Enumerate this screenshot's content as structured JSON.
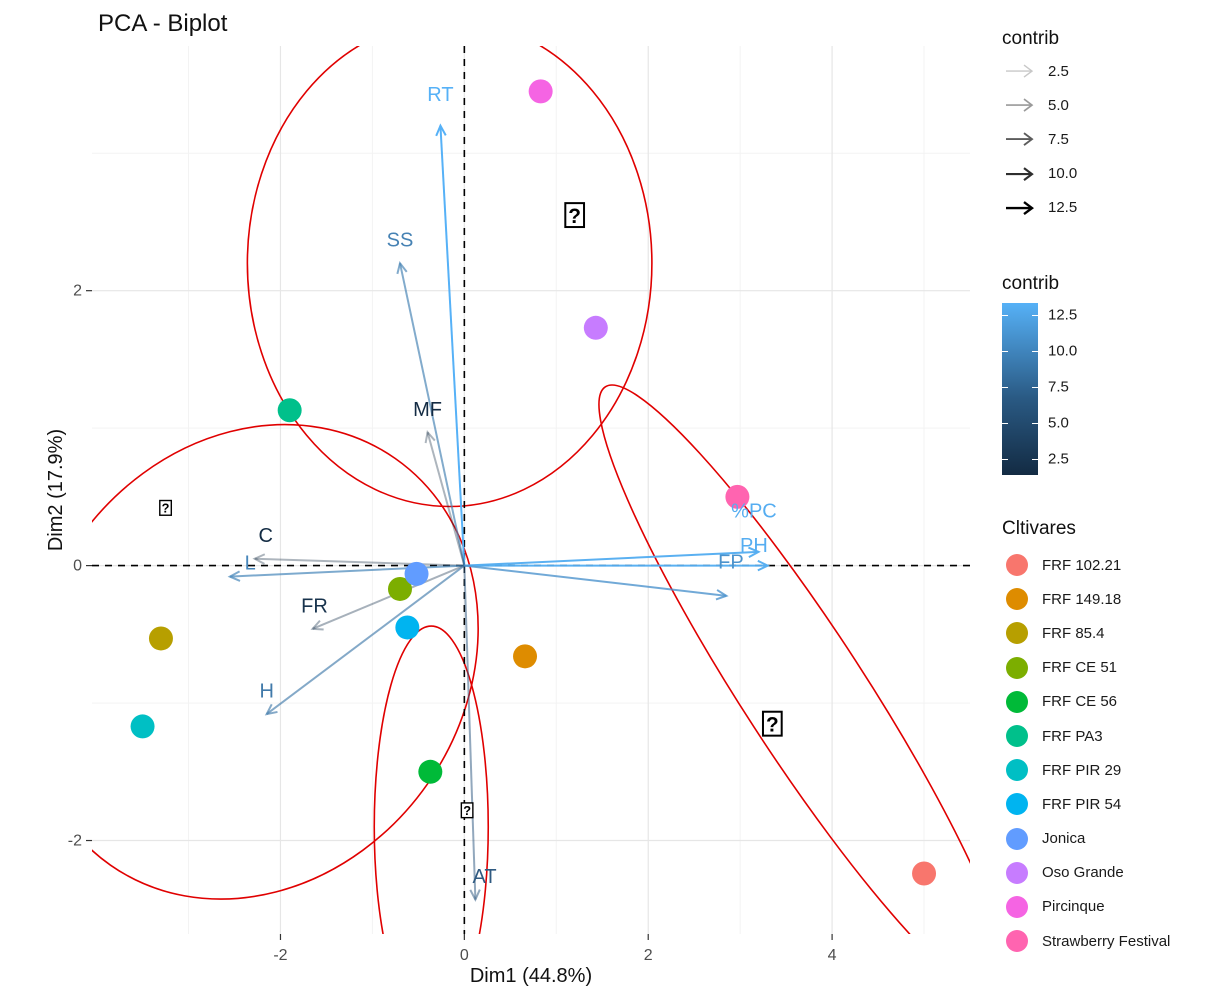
{
  "chart_data": {
    "type": "scatter",
    "title": "PCA - Biplot",
    "xlabel": "Dim1 (44.8%)",
    "ylabel": "Dim2 (17.9%)",
    "xlim": [
      -4.05,
      5.5
    ],
    "ylim": [
      -2.68,
      3.78
    ],
    "xticks": [
      -2,
      0,
      2,
      4
    ],
    "yticks": [
      -2,
      0,
      2
    ],
    "grid": true,
    "individuals": [
      {
        "name": "FRF 102.21",
        "x": 5.0,
        "y": -2.24,
        "color": "#F8766D"
      },
      {
        "name": "FRF 149.18",
        "x": 0.66,
        "y": -0.66,
        "color": "#DE8C00"
      },
      {
        "name": "FRF 85.4",
        "x": -3.3,
        "y": -0.53,
        "color": "#B79F00"
      },
      {
        "name": "FRF CE 51",
        "x": -0.7,
        "y": -0.17,
        "color": "#7CAE00"
      },
      {
        "name": "FRF CE 56",
        "x": -0.37,
        "y": -1.5,
        "color": "#00BA38"
      },
      {
        "name": "FRF PA3",
        "x": -1.9,
        "y": 1.13,
        "color": "#00C08B"
      },
      {
        "name": "FRF PIR 29",
        "x": -3.5,
        "y": -1.17,
        "color": "#00BFC4"
      },
      {
        "name": "FRF PIR 54",
        "x": -0.62,
        "y": -0.45,
        "color": "#00B4F0"
      },
      {
        "name": "Jonica",
        "x": -0.52,
        "y": -0.06,
        "color": "#619CFF"
      },
      {
        "name": "Oso Grande",
        "x": 1.43,
        "y": 1.73,
        "color": "#C77CFF"
      },
      {
        "name": "Pircinque",
        "x": 0.83,
        "y": 3.45,
        "color": "#F564E3"
      },
      {
        "name": "Strawberry Festival",
        "x": 2.97,
        "y": 0.5,
        "color": "#FF64B0"
      }
    ],
    "variables": [
      {
        "name": "RT",
        "x": -0.26,
        "y": 3.2,
        "contrib": 12.5
      },
      {
        "name": "SS",
        "x": -0.7,
        "y": 2.2,
        "contrib": 7.0
      },
      {
        "name": "MF",
        "x": -0.4,
        "y": 0.97,
        "contrib": 1.5
      },
      {
        "name": "C",
        "x": -2.28,
        "y": 0.05,
        "contrib": 1.5
      },
      {
        "name": "L",
        "x": -2.55,
        "y": -0.08,
        "contrib": 7.5
      },
      {
        "name": "FR",
        "x": -1.65,
        "y": -0.46,
        "contrib": 2.0
      },
      {
        "name": "H",
        "x": -2.15,
        "y": -1.08,
        "contrib": 6.5
      },
      {
        "name": "%PC",
        "x": 3.2,
        "y": 0.1,
        "contrib": 12.0
      },
      {
        "name": "PH",
        "x": 3.3,
        "y": 0.0,
        "contrib": 12.0
      },
      {
        "name": "FP",
        "x": 2.85,
        "y": -0.22,
        "contrib": 9.0
      },
      {
        "name": "AT",
        "x": 0.12,
        "y": -2.43,
        "contrib": 4.5
      }
    ],
    "variable_label_offsets": {
      "RT": [
        0,
        0.18
      ],
      "SS": [
        0,
        0.12
      ],
      "MF": [
        0,
        0.12
      ],
      "C": [
        0.12,
        0.12
      ],
      "L": [
        0.22,
        0.05
      ],
      "FR": [
        0.02,
        0.12
      ],
      "H": [
        0,
        0.12
      ],
      "%PC": [
        -0.05,
        0.25
      ],
      "PH": [
        -0.15,
        0.1
      ],
      "FP": [
        0.05,
        0.2
      ],
      "AT": [
        0.1,
        0.12
      ]
    },
    "ellipses": [
      {
        "cx": -0.16,
        "cy": 2.2,
        "rx": 2.2,
        "ry": 1.77,
        "angle": 0
      },
      {
        "cx": -2.3,
        "cy": -0.7,
        "rx": 2.7,
        "ry": 1.55,
        "angle": 55
      },
      {
        "cx": -0.36,
        "cy": -1.9,
        "rx": 0.62,
        "ry": 1.46,
        "angle": 0
      },
      {
        "cx": 3.7,
        "cy": -0.93,
        "rx": 0.66,
        "ry": 2.66,
        "angle": 33
      }
    ],
    "ellipse_color": "#E00000",
    "group_centers": [
      {
        "x": 1.2,
        "y": 2.55,
        "glyph": "?",
        "size": 26
      },
      {
        "x": -3.25,
        "y": 0.42,
        "glyph": "?",
        "size": 16
      },
      {
        "x": 0.03,
        "y": -1.78,
        "glyph": "?",
        "size": 16
      },
      {
        "x": 3.35,
        "y": -1.15,
        "glyph": "?",
        "size": 26
      }
    ]
  },
  "legend_contrib_arrows": {
    "title": "contrib",
    "items": [
      {
        "label": "2.5",
        "color": "#c8c8c8"
      },
      {
        "label": "5.0",
        "color": "#9a9a9a"
      },
      {
        "label": "7.5",
        "color": "#5c5c5c"
      },
      {
        "label": "10.0",
        "color": "#2e2e2e"
      },
      {
        "label": "12.5",
        "color": "#000000"
      }
    ]
  },
  "legend_contrib_gradient": {
    "title": "contrib",
    "ticks": [
      "12.5",
      "10.0",
      "7.5",
      "5.0",
      "2.5"
    ],
    "low_color": "#132B43",
    "high_color": "#56B1F7"
  },
  "legend_cultivars": {
    "title": "Cltivares",
    "items": [
      {
        "label": "FRF 102.21",
        "color": "#F8766D"
      },
      {
        "label": "FRF 149.18",
        "color": "#DE8C00"
      },
      {
        "label": "FRF 85.4",
        "color": "#B79F00"
      },
      {
        "label": "FRF CE 51",
        "color": "#7CAE00"
      },
      {
        "label": "FRF CE 56",
        "color": "#00BA38"
      },
      {
        "label": "FRF PA3",
        "color": "#00C08B"
      },
      {
        "label": "FRF PIR 29",
        "color": "#00BFC4"
      },
      {
        "label": "FRF PIR 54",
        "color": "#00B4F0"
      },
      {
        "label": "Jonica",
        "color": "#619CFF"
      },
      {
        "label": "Oso Grande",
        "color": "#C77CFF"
      },
      {
        "label": "Pircinque",
        "color": "#F564E3"
      },
      {
        "label": "Strawberry Festival",
        "color": "#FF64B0"
      }
    ]
  }
}
